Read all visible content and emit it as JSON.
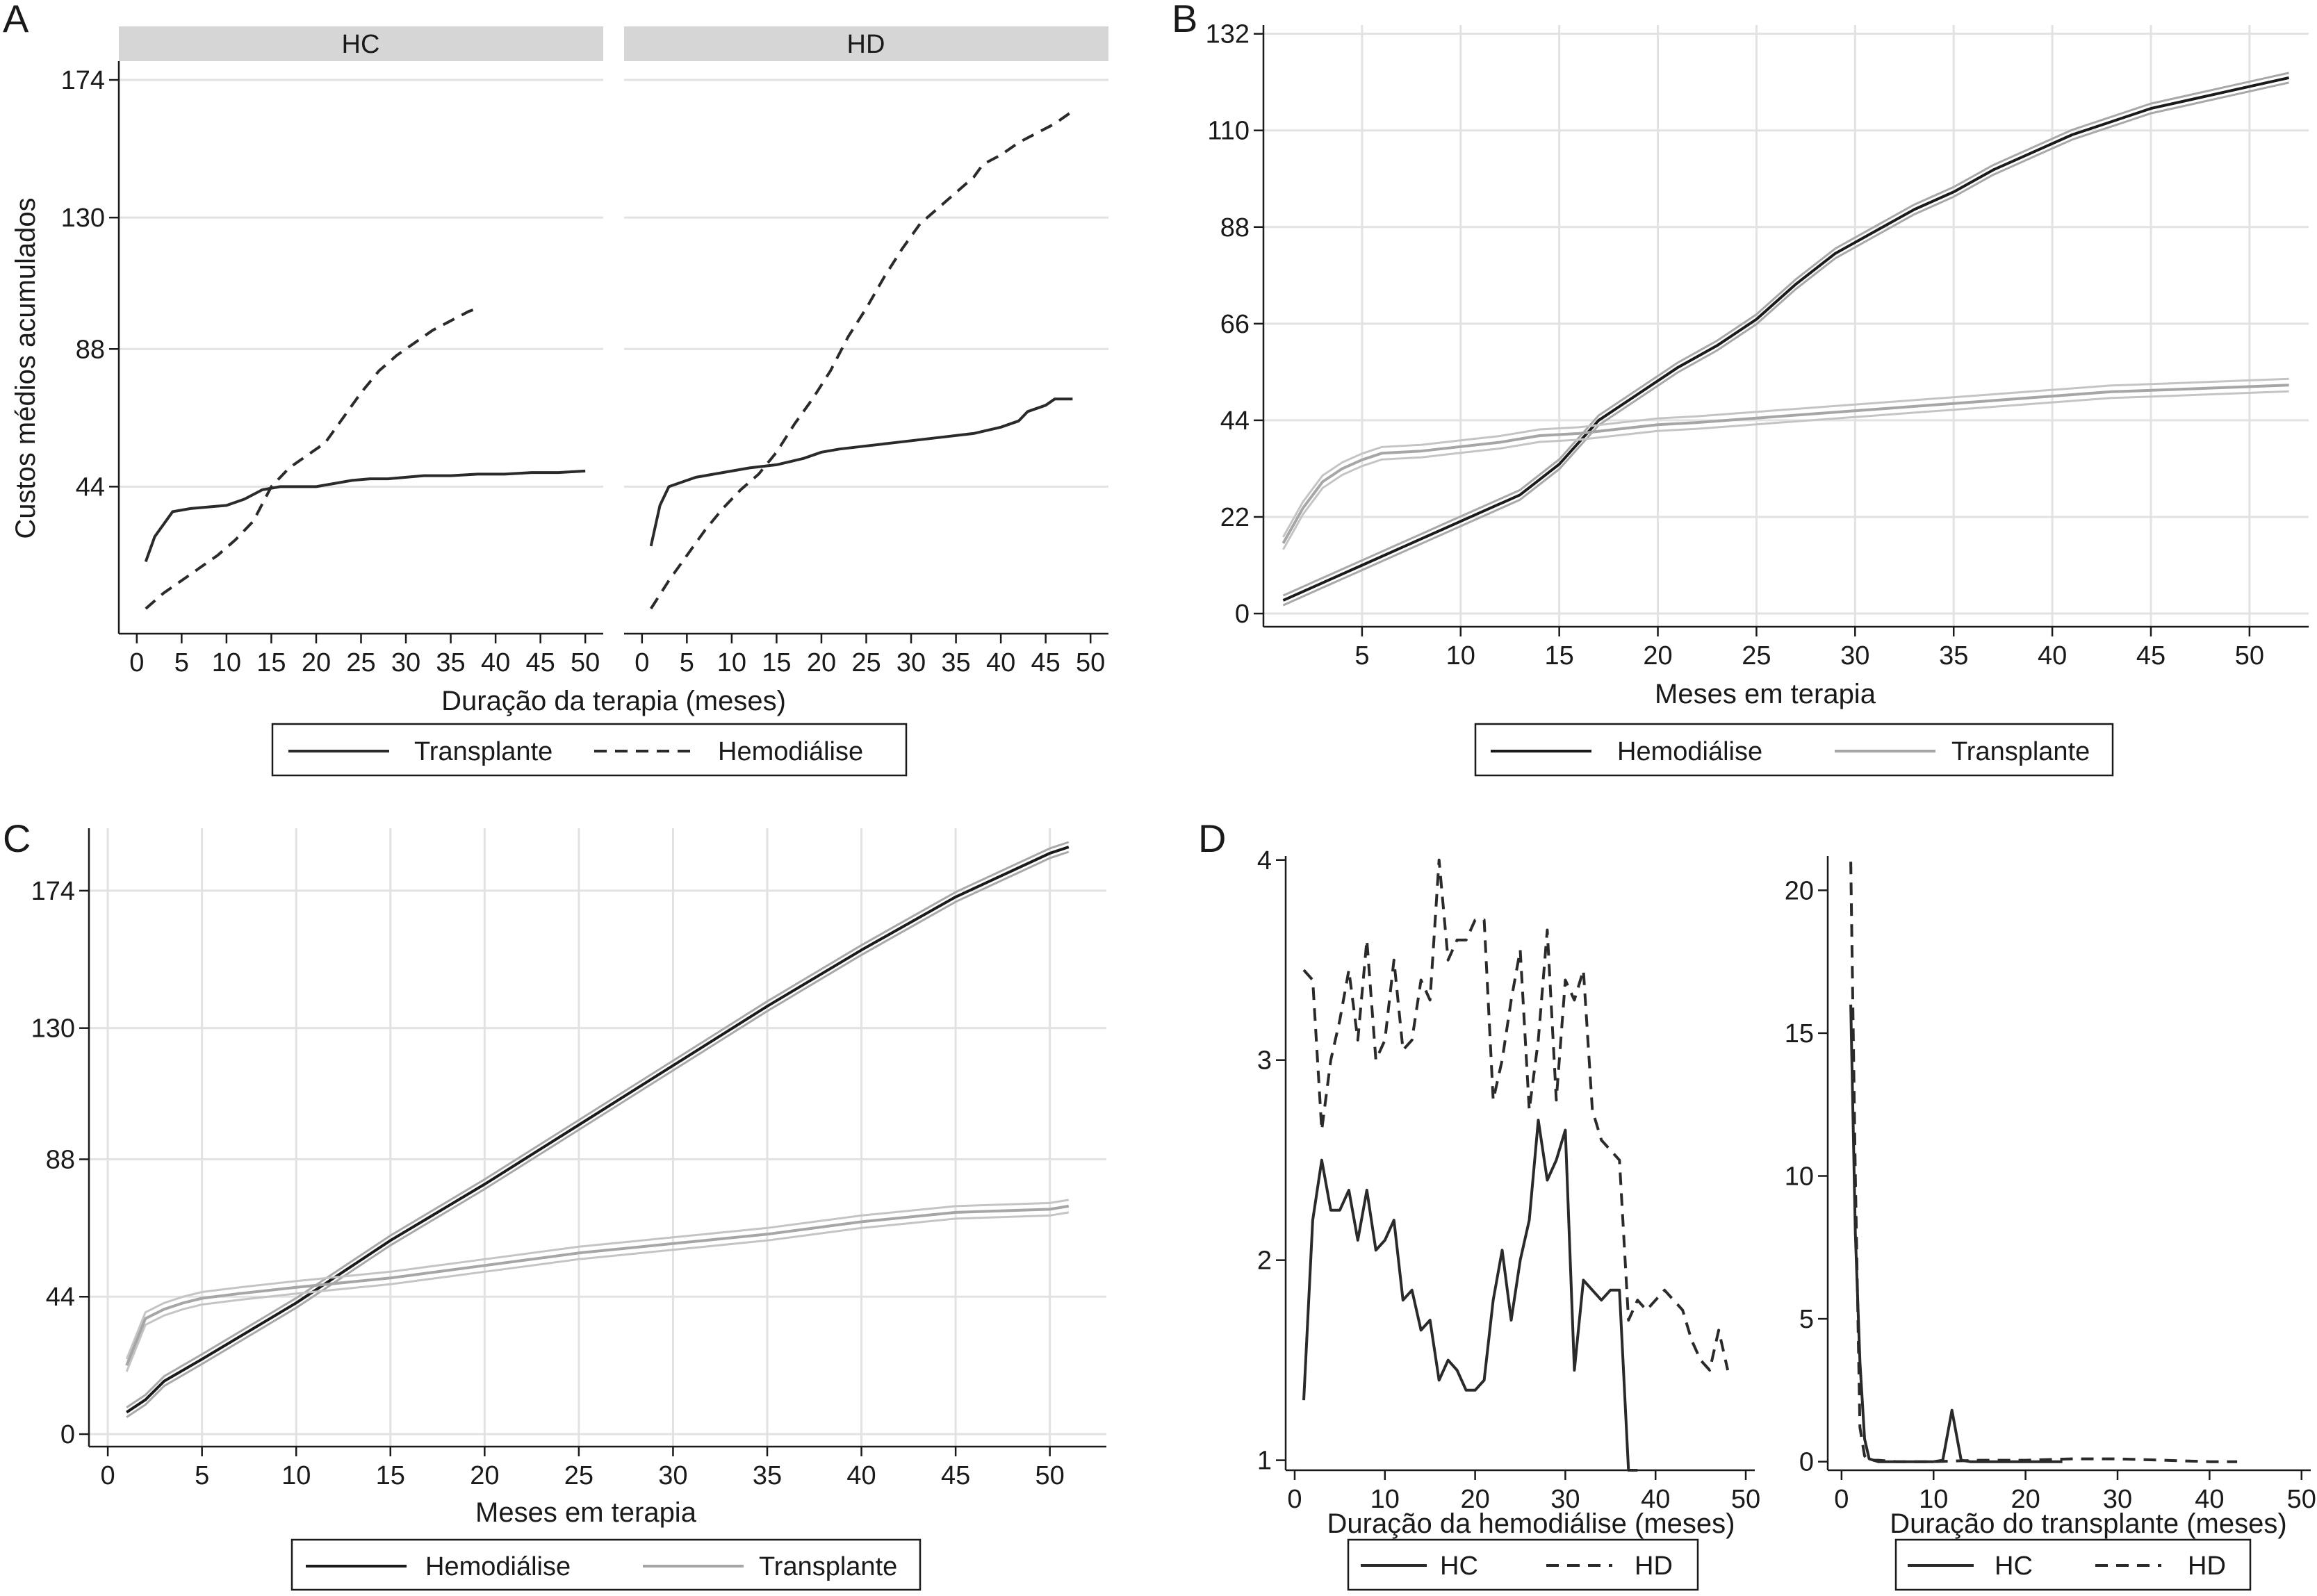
{
  "chart_data": [
    {
      "panel": "A",
      "type": "line",
      "ylabel": "Custos médios acumulados",
      "xlabel": "Duração da terapia (meses)",
      "facets": [
        {
          "strip": "HC",
          "xlim": [
            -2,
            52
          ],
          "ylim": [
            -3,
            180
          ],
          "xticks": [
            0,
            5,
            10,
            15,
            20,
            25,
            30,
            35,
            40,
            45,
            50
          ],
          "yticks": [
            44,
            88,
            130,
            174
          ],
          "series": [
            {
              "name": "Transplante",
              "style": "solid",
              "color": "#2a2a2a",
              "x": [
                1,
                2,
                3,
                4,
                6,
                8,
                10,
                12,
                14,
                16,
                18,
                20,
                22,
                24,
                26,
                28,
                30,
                32,
                35,
                38,
                41,
                44,
                47,
                50
              ],
              "y": [
                20,
                28,
                32,
                36,
                37,
                37.5,
                38,
                40,
                43,
                44,
                44,
                44,
                45,
                46,
                46.5,
                46.5,
                47,
                47.5,
                47.5,
                48,
                48,
                48.5,
                48.5,
                49
              ]
            },
            {
              "name": "Hemodiálise",
              "style": "dashed",
              "color": "#2a2a2a",
              "x": [
                1,
                3,
                5,
                7,
                9,
                11,
                13,
                15,
                17,
                19,
                21,
                23,
                25,
                27,
                29,
                31,
                33,
                35,
                37,
                38
              ],
              "y": [
                5,
                10,
                14,
                18,
                22,
                27,
                33,
                44,
                50,
                54,
                58,
                66,
                74,
                81,
                86,
                90,
                94,
                97,
                100,
                101
              ]
            }
          ]
        },
        {
          "strip": "HD",
          "xlim": [
            -2,
            52
          ],
          "ylim": [
            -3,
            180
          ],
          "xticks": [
            0,
            5,
            10,
            15,
            20,
            25,
            30,
            35,
            40,
            45,
            50
          ],
          "yticks": [
            44,
            88,
            130,
            174
          ],
          "series": [
            {
              "name": "Transplante",
              "style": "solid",
              "color": "#2a2a2a",
              "x": [
                1,
                2,
                3,
                4,
                6,
                8,
                10,
                12,
                15,
                18,
                20,
                22,
                25,
                28,
                31,
                34,
                37,
                40,
                42,
                43,
                44,
                45,
                46,
                48
              ],
              "y": [
                25,
                38,
                44,
                45,
                47,
                48,
                49,
                50,
                51,
                53,
                55,
                56,
                57,
                58,
                59,
                60,
                61,
                63,
                65,
                68,
                69,
                70,
                72,
                72
              ]
            },
            {
              "name": "Hemodiálise",
              "style": "dashed",
              "color": "#2a2a2a",
              "x": [
                1,
                3,
                5,
                7,
                9,
                11,
                13,
                15,
                17,
                19,
                21,
                23,
                25,
                27,
                29,
                31,
                33,
                35,
                37,
                38,
                40,
                42,
                44,
                46,
                48
              ],
              "y": [
                5,
                14,
                22,
                30,
                37,
                43,
                48,
                55,
                64,
                72,
                81,
                92,
                101,
                111,
                120,
                128,
                133,
                138,
                143,
                147,
                150,
                154,
                157,
                160,
                164
              ]
            }
          ]
        }
      ],
      "legend": [
        "Transplante",
        "Hemodiálise"
      ]
    },
    {
      "panel": "B",
      "type": "line",
      "xlabel": "Meses em terapia",
      "xlim": [
        0,
        53
      ],
      "ylim": [
        -3,
        134
      ],
      "xticks": [
        5,
        10,
        15,
        20,
        25,
        30,
        35,
        40,
        45,
        50
      ],
      "yticks": [
        0,
        22,
        44,
        66,
        88,
        110,
        132
      ],
      "series": [
        {
          "name": "Hemodiálise",
          "color": "#1a1a1a",
          "x": [
            1,
            3,
            5,
            7,
            9,
            11,
            13,
            15,
            17,
            19,
            21,
            23,
            25,
            27,
            29,
            31,
            33,
            35,
            37,
            39,
            41,
            43,
            45,
            47,
            49,
            51,
            52
          ],
          "y": [
            3,
            7,
            11,
            15,
            19,
            23,
            27,
            34,
            44,
            50,
            56,
            61,
            67,
            75,
            82,
            87,
            92,
            96,
            101,
            105,
            109,
            112,
            115,
            117,
            119,
            121,
            122
          ]
        },
        {
          "name": "Transplante",
          "color": "#a6a6a6",
          "x": [
            1,
            2,
            3,
            4,
            5,
            6,
            8,
            10,
            12,
            14,
            16,
            18,
            20,
            22,
            25,
            28,
            31,
            34,
            37,
            40,
            43,
            46,
            49,
            52
          ],
          "y": [
            16,
            24,
            30,
            33,
            35,
            36.5,
            37,
            38,
            39,
            40.5,
            41,
            42,
            43,
            43.5,
            44.5,
            45.5,
            46.5,
            47.5,
            48.5,
            49.5,
            50.5,
            51,
            51.5,
            52
          ]
        }
      ],
      "legend": [
        "Hemodiálise",
        "Transplante"
      ]
    },
    {
      "panel": "C",
      "type": "line",
      "xlabel": "Meses em terapia",
      "xlim": [
        -1,
        53
      ],
      "ylim": [
        -4,
        194
      ],
      "xticks": [
        0,
        5,
        10,
        15,
        20,
        25,
        30,
        35,
        40,
        45,
        50
      ],
      "yticks": [
        0,
        44,
        88,
        130,
        174
      ],
      "series": [
        {
          "name": "Hemodiálise",
          "color": "#1a1a1a",
          "x": [
            1,
            2,
            3,
            5,
            10,
            15,
            20,
            25,
            30,
            35,
            40,
            45,
            50,
            51
          ],
          "y": [
            7,
            11,
            17,
            24,
            42,
            62,
            80,
            99,
            118,
            137,
            155,
            172,
            186,
            188
          ]
        },
        {
          "name": "Transplante",
          "color": "#a6a6a6",
          "x": [
            1,
            2,
            3,
            4,
            5,
            7,
            10,
            15,
            20,
            25,
            30,
            35,
            40,
            45,
            50,
            51
          ],
          "y": [
            22,
            37,
            40,
            42,
            43.5,
            45,
            47,
            50,
            54,
            58,
            61,
            64,
            68,
            71,
            72,
            73
          ]
        }
      ],
      "legend": [
        "Hemodiálise",
        "Transplante"
      ]
    },
    {
      "panel": "D",
      "type": "line",
      "facets": [
        {
          "xlabel": "Duração da hemodiálise (meses)",
          "xlim": [
            -1,
            51
          ],
          "ylim": [
            0.95,
            4.02
          ],
          "xticks": [
            0,
            10,
            20,
            30,
            40,
            50
          ],
          "yticks": [
            1,
            2,
            3,
            4
          ],
          "series": [
            {
              "name": "HC",
              "style": "solid",
              "color": "#2a2a2a",
              "x": [
                1,
                2,
                3,
                4,
                5,
                6,
                7,
                8,
                9,
                10,
                11,
                12,
                13,
                14,
                15,
                16,
                17,
                18,
                19,
                20,
                21,
                22,
                23,
                24,
                25,
                26,
                27,
                28,
                29,
                30,
                31,
                32,
                33,
                34,
                35,
                36,
                37,
                38
              ],
              "y": [
                1.3,
                2.2,
                2.5,
                2.25,
                2.25,
                2.35,
                2.1,
                2.35,
                2.05,
                2.1,
                2.2,
                1.8,
                1.85,
                1.65,
                1.7,
                1.4,
                1.5,
                1.45,
                1.35,
                1.35,
                1.4,
                1.8,
                2.05,
                1.7,
                2.0,
                2.2,
                2.7,
                2.4,
                2.5,
                2.65,
                1.45,
                1.9,
                1.85,
                1.8,
                1.85,
                1.85,
                0.95,
                0.95
              ]
            },
            {
              "name": "HD",
              "style": "dashed",
              "color": "#2a2a2a",
              "x": [
                1,
                2,
                3,
                4,
                5,
                6,
                7,
                8,
                9,
                10,
                11,
                12,
                13,
                14,
                15,
                16,
                17,
                18,
                19,
                20,
                21,
                22,
                23,
                24,
                25,
                26,
                27,
                28,
                29,
                30,
                31,
                32,
                33,
                34,
                35,
                36,
                37,
                38,
                39,
                40,
                41,
                42,
                43,
                44,
                45,
                46,
                47,
                48
              ],
              "y": [
                3.45,
                3.4,
                2.65,
                3.0,
                3.2,
                3.45,
                3.1,
                3.6,
                3.0,
                3.1,
                3.5,
                3.05,
                3.1,
                3.4,
                3.3,
                4.0,
                3.5,
                3.6,
                3.6,
                3.7,
                3.7,
                2.8,
                3.0,
                3.3,
                3.55,
                2.75,
                3.1,
                3.65,
                2.8,
                3.4,
                3.3,
                3.45,
                2.75,
                2.6,
                2.55,
                2.5,
                1.7,
                1.8,
                1.75,
                1.8,
                1.85,
                1.8,
                1.75,
                1.6,
                1.5,
                1.45,
                1.65,
                1.45
              ]
            }
          ]
        },
        {
          "xlabel": "Duração do transplante (meses)",
          "xlim": [
            -1.5,
            51
          ],
          "ylim": [
            -0.3,
            21.2
          ],
          "xticks": [
            0,
            10,
            20,
            30,
            40,
            50
          ],
          "yticks": [
            0,
            5,
            10,
            15,
            20
          ],
          "series": [
            {
              "name": "HC",
              "style": "solid",
              "color": "#2a2a2a",
              "x": [
                1,
                1.5,
                2,
                2.5,
                3,
                4,
                6,
                8,
                10,
                11,
                12,
                13,
                14,
                16,
                18,
                20,
                22,
                24
              ],
              "y": [
                16,
                8,
                3.5,
                0.8,
                0.1,
                0,
                0,
                0,
                0,
                0.05,
                1.8,
                0.05,
                0,
                0,
                0,
                0,
                0,
                0
              ]
            },
            {
              "name": "HD",
              "style": "dashed",
              "color": "#2a2a2a",
              "x": [
                1,
                1.5,
                2,
                2.5,
                3,
                4,
                6,
                10,
                15,
                20,
                25,
                30,
                35,
                40,
                43
              ],
              "y": [
                21,
                10,
                1.2,
                0.2,
                0.05,
                0.05,
                0,
                0,
                0.05,
                0.05,
                0.1,
                0.1,
                0.05,
                0,
                0
              ]
            }
          ]
        }
      ],
      "legend": [
        "HC",
        "HD"
      ]
    }
  ]
}
